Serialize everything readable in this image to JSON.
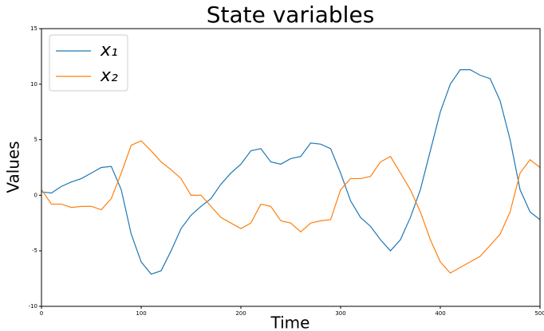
{
  "chart_data": {
    "type": "line",
    "title": "State variables",
    "xlabel": "Time",
    "ylabel": "Values",
    "x": [
      0,
      10,
      20,
      30,
      40,
      50,
      60,
      70,
      80,
      90,
      100,
      110,
      120,
      130,
      140,
      150,
      160,
      170,
      180,
      190,
      200,
      210,
      220,
      230,
      240,
      250,
      260,
      270,
      280,
      290,
      300,
      310,
      320,
      330,
      340,
      350,
      360,
      370,
      380,
      390,
      400,
      410,
      420,
      430,
      440,
      450,
      460,
      470,
      480,
      490,
      500
    ],
    "series": [
      {
        "name": "x₁",
        "color": "#1f77b4",
        "values": [
          0.3,
          0.2,
          0.8,
          1.2,
          1.5,
          2.0,
          2.5,
          2.6,
          0.5,
          -3.5,
          -6.0,
          -7.1,
          -6.8,
          -5.0,
          -3.0,
          -1.8,
          -1.0,
          -0.3,
          1.0,
          2.0,
          2.8,
          4.0,
          4.2,
          3.0,
          2.8,
          3.3,
          3.5,
          4.7,
          4.6,
          4.2,
          2.0,
          -0.5,
          -2.0,
          -2.8,
          -4.0,
          -5.0,
          -4.0,
          -2.0,
          0.5,
          4.0,
          7.5,
          10.0,
          11.3,
          11.3,
          10.8,
          10.5,
          8.5,
          5.0,
          0.5,
          -1.5,
          -2.2
        ]
      },
      {
        "name": "x₂",
        "color": "#ff7f0e",
        "values": [
          0.5,
          -0.8,
          -0.8,
          -1.1,
          -1.0,
          -1.0,
          -1.3,
          -0.3,
          2.0,
          4.5,
          4.9,
          4.0,
          3.0,
          2.3,
          1.5,
          0.0,
          0.0,
          -1.0,
          -2.0,
          -2.5,
          -3.0,
          -2.5,
          -0.8,
          -1.0,
          -2.3,
          -2.5,
          -3.3,
          -2.5,
          -2.3,
          -2.2,
          0.5,
          1.5,
          1.5,
          1.7,
          3.0,
          3.5,
          2.0,
          0.5,
          -1.5,
          -4.0,
          -6.0,
          -7.0,
          -6.5,
          -6.0,
          -5.5,
          -4.5,
          -3.5,
          -1.5,
          2.0,
          3.2,
          2.5
        ]
      }
    ],
    "xlim": [
      0,
      500
    ],
    "xticks": [
      0,
      100,
      200,
      300,
      400,
      500
    ],
    "ylim": [
      -10,
      15
    ],
    "yticks": [
      -10,
      -5,
      0,
      5,
      10,
      15
    ],
    "grid": false,
    "legend": "upper left"
  }
}
